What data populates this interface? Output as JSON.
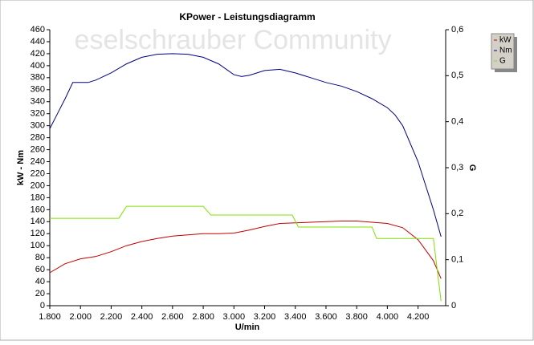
{
  "chart_data": {
    "type": "line",
    "title": "KPower - Leistungsdiagramm",
    "watermark": "eselschrauber Community",
    "xlabel": "U/min",
    "ylabel": "kW - Nm",
    "y2label": "G",
    "xlim": [
      1800,
      4380
    ],
    "xticks": [
      {
        "value": 1800,
        "label": "1.800"
      },
      {
        "value": 2000,
        "label": "2.000"
      },
      {
        "value": 2200,
        "label": "2.200"
      },
      {
        "value": 2400,
        "label": "2.400"
      },
      {
        "value": 2600,
        "label": "2.600"
      },
      {
        "value": 2800,
        "label": "2.800"
      },
      {
        "value": 3000,
        "label": "3.000"
      },
      {
        "value": 3200,
        "label": "3.200"
      },
      {
        "value": 3400,
        "label": "3.400"
      },
      {
        "value": 3600,
        "label": "3.600"
      },
      {
        "value": 3800,
        "label": "3.800"
      },
      {
        "value": 4000,
        "label": "4.000"
      },
      {
        "value": 4200,
        "label": "4.200"
      }
    ],
    "ylim": [
      0,
      460
    ],
    "yticks": [
      0,
      20,
      40,
      60,
      80,
      100,
      120,
      140,
      160,
      180,
      200,
      220,
      240,
      260,
      280,
      300,
      320,
      340,
      360,
      380,
      400,
      420,
      440,
      460
    ],
    "y2lim": [
      0,
      0.6
    ],
    "y2ticks": [
      0,
      {
        "value": 0.1,
        "label": "0,1"
      },
      {
        "value": 0.2,
        "label": "0,2"
      },
      {
        "value": 0.3,
        "label": "0,3"
      },
      {
        "value": 0.4,
        "label": "0,4"
      },
      {
        "value": 0.5,
        "label": "0,5"
      },
      {
        "value": 0.6,
        "label": "0,6"
      }
    ],
    "series": [
      {
        "name": "kW",
        "color": "#c00000",
        "x": [
          1800,
          1900,
          2000,
          2100,
          2200,
          2300,
          2400,
          2500,
          2600,
          2700,
          2800,
          2900,
          3000,
          3100,
          3200,
          3300,
          3400,
          3500,
          3600,
          3700,
          3800,
          3900,
          4000,
          4100,
          4200,
          4300,
          4350
        ],
        "values": [
          55,
          70,
          78,
          82,
          90,
          100,
          107,
          112,
          116,
          118,
          120,
          120,
          121,
          126,
          132,
          137,
          138,
          139,
          140,
          141,
          141,
          139,
          137,
          130,
          110,
          75,
          45
        ]
      },
      {
        "name": "Nm",
        "color": "#000080",
        "x": [
          1800,
          1850,
          1900,
          1950,
          2000,
          2050,
          2100,
          2200,
          2300,
          2400,
          2500,
          2600,
          2700,
          2800,
          2900,
          3000,
          3050,
          3100,
          3200,
          3300,
          3400,
          3500,
          3600,
          3700,
          3800,
          3900,
          4000,
          4050,
          4100,
          4200,
          4300,
          4350
        ],
        "values": [
          295,
          320,
          345,
          372,
          372,
          372,
          376,
          388,
          403,
          414,
          419,
          420,
          419,
          414,
          403,
          385,
          382,
          384,
          392,
          394,
          388,
          380,
          372,
          366,
          357,
          345,
          330,
          318,
          300,
          240,
          160,
          115
        ]
      },
      {
        "name": "G",
        "color": "#80e000",
        "axis": "y2",
        "x": [
          1800,
          2250,
          2300,
          2800,
          2850,
          3380,
          3420,
          3900,
          3930,
          4300,
          4350
        ],
        "values": [
          0.19,
          0.19,
          0.216,
          0.216,
          0.197,
          0.197,
          0.171,
          0.171,
          0.146,
          0.146,
          0.01
        ]
      }
    ]
  }
}
